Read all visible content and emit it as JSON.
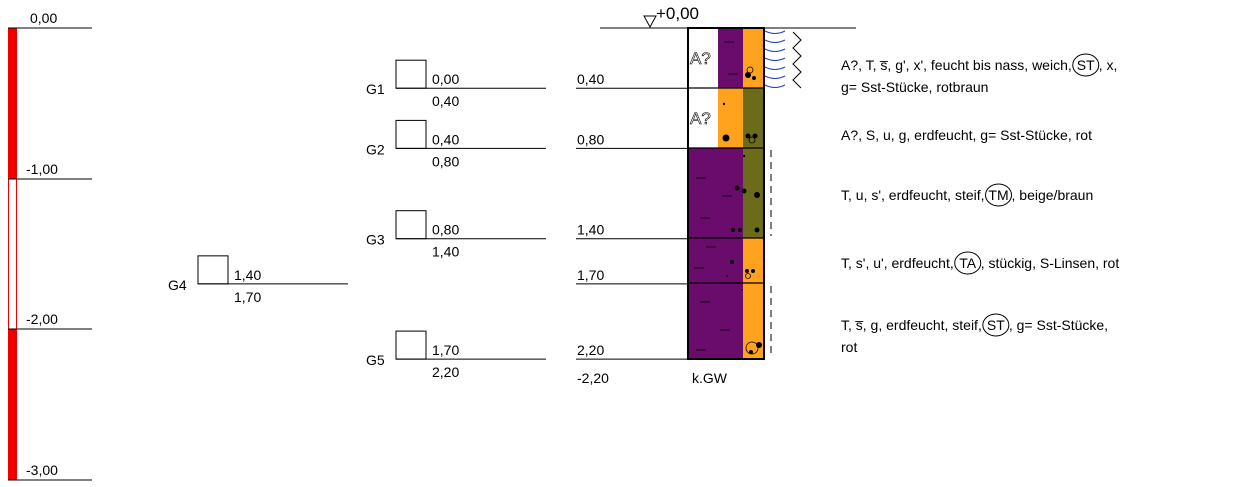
{
  "colors": {
    "scale_red": "#ee0000",
    "clay_purple": "#6a0c6b",
    "sand_orange": "#ffa21e",
    "gravel_olive": "#6b6b1a",
    "water_blue": "#2040c0",
    "line": "#000000"
  },
  "depth_scale": {
    "labels": [
      "0,00",
      "-1,00",
      "-2,00",
      "-3,00"
    ],
    "values": [
      0,
      1,
      2,
      3
    ]
  },
  "samples": [
    {
      "id": "G1",
      "top": "0,00",
      "bottom": "0,40",
      "top_m": 0.0,
      "bottom_m": 0.4,
      "column": 2
    },
    {
      "id": "G2",
      "top": "0,40",
      "bottom": "0,80",
      "top_m": 0.4,
      "bottom_m": 0.8,
      "column": 2
    },
    {
      "id": "G3",
      "top": "0,80",
      "bottom": "1,40",
      "top_m": 0.8,
      "bottom_m": 1.4,
      "column": 2
    },
    {
      "id": "G4",
      "top": "1,40",
      "bottom": "1,70",
      "top_m": 1.4,
      "bottom_m": 1.7,
      "column": 1
    },
    {
      "id": "G5",
      "top": "1,70",
      "bottom": "2,20",
      "top_m": 1.7,
      "bottom_m": 2.2,
      "column": 2
    }
  ],
  "boring": {
    "top_label": "+0,00",
    "groundwater": "k.GW",
    "end_depth": "-2,20",
    "layers": [
      {
        "bottom_label": "0,40",
        "top_m": 0.0,
        "bottom_m": 0.4,
        "symbol": "A?",
        "description": [
          "A?, T, s̅, g', x', feucht bis nass, weich,",
          "ST",
          ", x,",
          "g= Sst-Stücke, rotbraun"
        ]
      },
      {
        "bottom_label": "0,80",
        "top_m": 0.4,
        "bottom_m": 0.8,
        "symbol": "A?",
        "description": [
          "A?, S, u, g, erdfeucht, g= Sst-Stücke, rot"
        ]
      },
      {
        "bottom_label": "1,40",
        "top_m": 0.8,
        "bottom_m": 1.4,
        "symbol": "",
        "description": [
          "T, u, s', erdfeucht, steif,",
          "TM",
          ", beige/braun"
        ]
      },
      {
        "bottom_label": "1,70",
        "top_m": 1.4,
        "bottom_m": 1.7,
        "symbol": "",
        "description": [
          "T, s', u', erdfeucht,",
          "TA",
          ", stückig, S-Linsen, rot"
        ]
      },
      {
        "bottom_label": "2,20",
        "top_m": 1.7,
        "bottom_m": 2.2,
        "symbol": "",
        "description": [
          "T, s̅, g, erdfeucht, steif,",
          "ST",
          ", g= Sst-Stücke,",
          "rot"
        ]
      }
    ]
  }
}
